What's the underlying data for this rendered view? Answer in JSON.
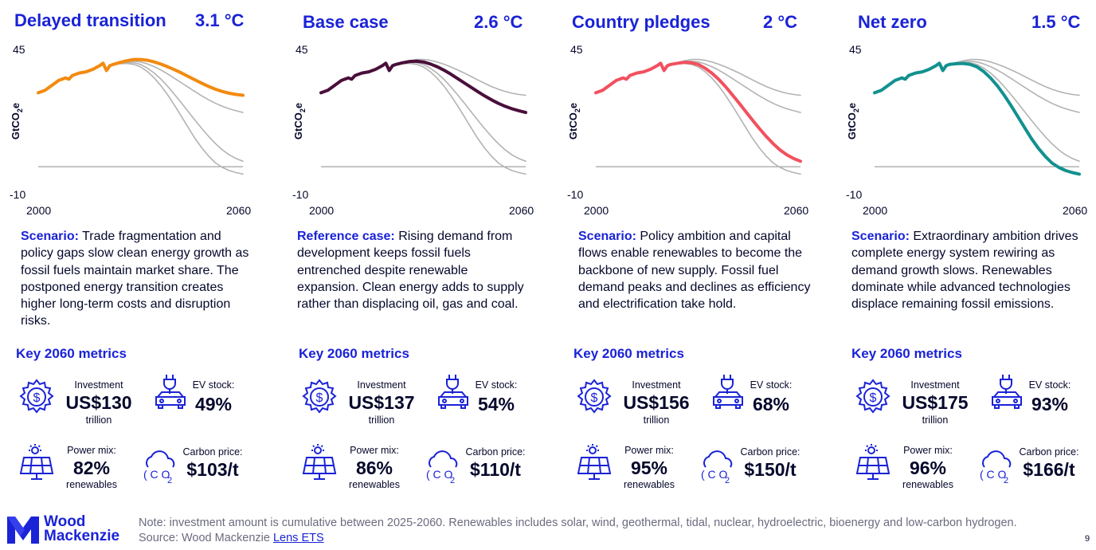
{
  "panels": [
    {
      "title": "Delayed transition",
      "temp": "3.1 °C",
      "y_max": "45",
      "y_min": "-10",
      "y_label": "GtCO",
      "y_label_sub": "2",
      "y_label_suffix": "e",
      "x_start": "2000",
      "x_end": "2060",
      "desc_lead": "Scenario:",
      "desc_text": " Trade fragmentation and policy gaps slow clean energy growth as fossil fuels maintain market share. The postponed energy transition creates higher long-term costs and disruption risks.",
      "key_metrics": "Key 2060 metrics",
      "investment_label": "Investment",
      "investment_value": "US$130",
      "investment_unit": "trillion",
      "ev_label": "EV stock:",
      "ev_value": "49%",
      "power_label": "Power mix:",
      "power_value": "82%",
      "power_unit": "renewables",
      "carbon_label": "Carbon price:",
      "carbon_value": "$103/t",
      "highlight": "delayed",
      "color": "#f28a10"
    },
    {
      "title": "Base case",
      "temp": "2.6 °C",
      "y_max": "45",
      "y_min": "-10",
      "y_label": "GtCO",
      "y_label_sub": "2",
      "y_label_suffix": "e",
      "x_start": "2000",
      "x_end": "2060",
      "desc_lead": "Reference case:",
      "desc_text": " Rising demand from development keeps fossil fuels entrenched despite renewable expansion. Clean energy adds to supply rather than displacing oil, gas and coal.",
      "key_metrics": "Key 2060 metrics",
      "investment_label": "Investment",
      "investment_value": "US$137",
      "investment_unit": "trillion",
      "ev_label": "EV stock:",
      "ev_value": "54%",
      "power_label": "Power mix:",
      "power_value": "86%",
      "power_unit": "renewables",
      "carbon_label": "Carbon price:",
      "carbon_value": "$110/t",
      "highlight": "base",
      "color": "#4a0f3b"
    },
    {
      "title": "Country pledges",
      "temp": "2 °C",
      "y_max": "45",
      "y_min": "-10",
      "y_label": "GtCO",
      "y_label_sub": "2",
      "y_label_suffix": "e",
      "x_start": "2000",
      "x_end": "2060",
      "desc_lead": "Scenario:",
      "desc_text": " Policy ambition and capital flows enable renewables to become the backbone of new supply. Fossil fuel demand peaks and declines as efficiency and electrification take hold.",
      "key_metrics": "Key 2060 metrics",
      "investment_label": "Investment",
      "investment_value": "US$156",
      "investment_unit": "trillion",
      "ev_label": "EV stock:",
      "ev_value": "68%",
      "power_label": "Power mix:",
      "power_value": "95%",
      "power_unit": "renewables",
      "carbon_label": "Carbon price:",
      "carbon_value": "$150/t",
      "highlight": "pledges",
      "color": "#f2505e"
    },
    {
      "title": "Net zero",
      "temp": "1.5 °C",
      "y_max": "45",
      "y_min": "-10",
      "y_label": "GtCO",
      "y_label_sub": "2",
      "y_label_suffix": "e",
      "x_start": "2000",
      "x_end": "2060",
      "desc_lead": "Scenario:",
      "desc_text": " Extraordinary ambition drives complete energy system rewiring as demand growth slows. Renewables dominate while advanced technologies displace remaining fossil emissions.",
      "key_metrics": "Key 2060 metrics",
      "investment_label": "Investment",
      "investment_value": "US$175",
      "investment_unit": "trillion",
      "ev_label": "EV stock:",
      "ev_value": "93%",
      "power_label": "Power mix:",
      "power_value": "96%",
      "power_unit": "renewables",
      "carbon_label": "Carbon price:",
      "carbon_value": "$166/t",
      "highlight": "netzero",
      "color": "#12918f"
    }
  ],
  "chart_data": {
    "type": "line",
    "xlabel": "",
    "ylabel": "GtCO2e",
    "xlim": [
      2000,
      2060
    ],
    "ylim": [
      -10,
      45
    ],
    "x": [
      2000,
      2002,
      2004,
      2006,
      2008,
      2009,
      2010,
      2012,
      2014,
      2016,
      2018,
      2019,
      2020,
      2021,
      2022,
      2024,
      2026,
      2028,
      2030,
      2032,
      2034,
      2036,
      2038,
      2040,
      2042,
      2044,
      2046,
      2048,
      2050,
      2052,
      2054,
      2056,
      2058,
      2060
    ],
    "series": [
      {
        "name": "Delayed transition",
        "values": [
          30,
          31,
          33,
          35,
          36,
          35.5,
          37,
          38,
          38.5,
          39.5,
          41,
          42,
          39,
          41,
          41.5,
          42.3,
          43,
          43.5,
          43.5,
          43.2,
          42.5,
          41.6,
          40.5,
          39.3,
          38,
          36.6,
          35.2,
          33.8,
          32.5,
          31.4,
          30.5,
          29.8,
          29.3,
          29
        ]
      },
      {
        "name": "Base case",
        "values": [
          30,
          31,
          33,
          35,
          36,
          35.5,
          37,
          38,
          38.5,
          39.5,
          41,
          42,
          39,
          41,
          41.5,
          42.2,
          42.7,
          42.8,
          42.5,
          41.7,
          40.6,
          39.2,
          37.6,
          35.8,
          34,
          32.2,
          30.4,
          28.7,
          27.1,
          25.7,
          24.5,
          23.5,
          22.7,
          22
        ]
      },
      {
        "name": "Country pledges",
        "values": [
          30,
          31,
          33,
          35,
          36,
          35.5,
          37,
          38,
          38.5,
          39.5,
          41,
          42,
          39,
          41,
          41.5,
          42,
          42.3,
          42.2,
          41.5,
          40,
          38,
          35.5,
          32.5,
          29.2,
          25.8,
          22.3,
          18.8,
          15.4,
          12.2,
          9.3,
          6.8,
          4.8,
          3.3,
          2.2
        ]
      },
      {
        "name": "Net zero",
        "values": [
          30,
          31,
          33,
          35,
          36,
          35.5,
          37,
          38,
          38.5,
          39.5,
          41,
          42,
          39,
          41,
          41.5,
          41.8,
          41.9,
          41.5,
          40.5,
          38.6,
          36,
          32.8,
          29,
          24.8,
          20.3,
          15.8,
          11.4,
          7.5,
          4.2,
          1.5,
          -0.3,
          -1.6,
          -2.4,
          -3
        ]
      }
    ]
  },
  "footer": {
    "note": "Note: investment amount is cumulative between 2025-2060. Renewables includes solar, wind, geothermal, tidal, nuclear, hydroelectric, bioenergy and low-carbon hydrogen.",
    "source_prefix": "Source: Wood Mackenzie ",
    "source_link": "Lens ETS",
    "page": "9"
  },
  "logo": {
    "line1": "Wood",
    "line2": "Mackenzie"
  },
  "icons": {
    "investment": "dollar-gear-icon",
    "ev": "ev-charging-car-icon",
    "power": "solar-panel-icon",
    "carbon": "co2-cloud-icon"
  }
}
